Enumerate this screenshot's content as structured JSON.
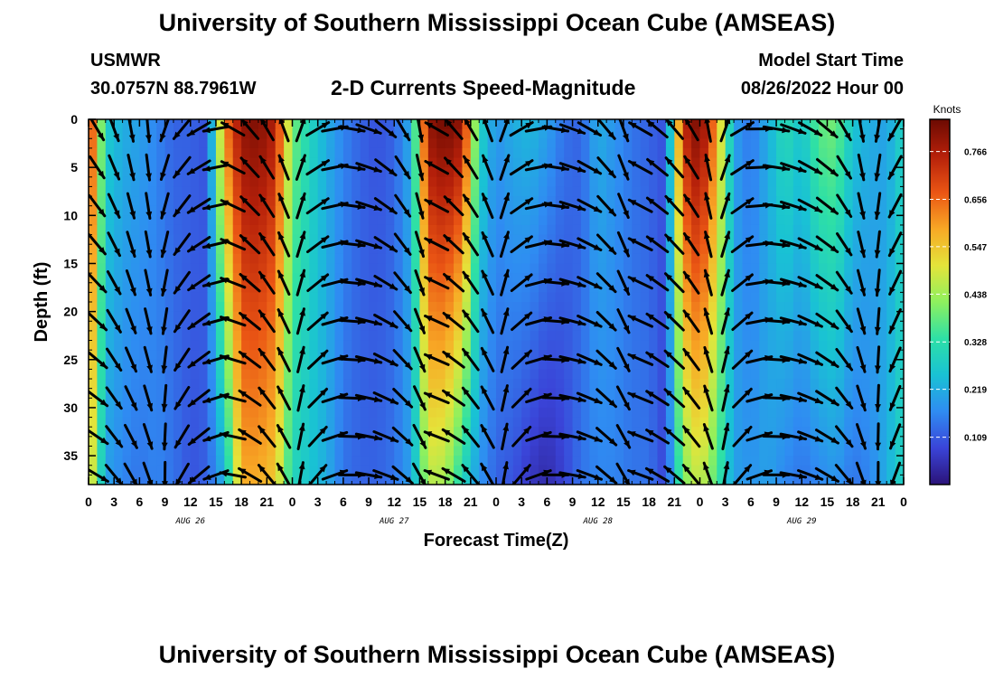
{
  "page": {
    "title": "University of Southern Mississippi Ocean Cube (AMSEAS)",
    "station": "USMWR",
    "coords": "30.0757N  88.7961W",
    "subtitle": "2-D Currents Speed-Magnitude",
    "model_start_label": "Model Start Time",
    "model_start_value": "08/26/2022 Hour 00",
    "footer_title": "University of Southern Mississippi Ocean Cube (AMSEAS)"
  },
  "colors": {
    "colormap": [
      "#2b1378",
      "#3a44d8",
      "#2f8cf2",
      "#19c2d4",
      "#2ee0a6",
      "#8ef05e",
      "#e4e43a",
      "#f8a825",
      "#ea5514",
      "#b5200a",
      "#6c0a02"
    ],
    "arrow": "#000000"
  },
  "chart_data": {
    "type": "heatmap",
    "xlabel": "Forecast Time(Z)",
    "ylabel": "Depth (ft)",
    "x_range_hours": [
      0,
      96
    ],
    "y_range_ft": [
      0,
      38
    ],
    "y_inverted": true,
    "x_ticks": [
      "0",
      "3",
      "6",
      "9",
      "12",
      "15",
      "18",
      "21",
      "0",
      "3",
      "6",
      "9",
      "12",
      "15",
      "18",
      "21",
      "0",
      "3",
      "6",
      "9",
      "12",
      "15",
      "18",
      "21",
      "0",
      "3",
      "6",
      "9",
      "12",
      "15",
      "18",
      "21",
      "0"
    ],
    "y_ticks": [
      0,
      5,
      10,
      15,
      20,
      25,
      30,
      35
    ],
    "date_labels": [
      {
        "text": "AUG 26",
        "hour": 12
      },
      {
        "text": "AUG 27",
        "hour": 36
      },
      {
        "text": "AUG 28",
        "hour": 60
      },
      {
        "text": "AUG 29",
        "hour": 84
      }
    ],
    "colorbar": {
      "unit": "Knots",
      "range": [
        0,
        0.84
      ],
      "ticks": [
        0.109,
        0.219,
        0.328,
        0.438,
        0.547,
        0.656,
        0.766
      ]
    },
    "speed_profile_hours": [
      0,
      2,
      4,
      6,
      8,
      10,
      12,
      14,
      16,
      18,
      20,
      22,
      24,
      26,
      28,
      30,
      32,
      34,
      36,
      38,
      40,
      42,
      44,
      46,
      48,
      50,
      52,
      54,
      56,
      58,
      60,
      62,
      64,
      66,
      68,
      70,
      72,
      74,
      76,
      78,
      80,
      82,
      84,
      86,
      88,
      90,
      92,
      94,
      96
    ],
    "speed_surface_knots": [
      0.78,
      0.28,
      0.22,
      0.2,
      0.16,
      0.12,
      0.12,
      0.1,
      0.62,
      0.8,
      0.82,
      0.76,
      0.4,
      0.3,
      0.22,
      0.16,
      0.12,
      0.1,
      0.12,
      0.22,
      0.8,
      0.84,
      0.8,
      0.3,
      0.18,
      0.22,
      0.24,
      0.2,
      0.14,
      0.12,
      0.22,
      0.18,
      0.14,
      0.12,
      0.1,
      0.74,
      0.84,
      0.6,
      0.2,
      0.14,
      0.22,
      0.32,
      0.26,
      0.38,
      0.4,
      0.26,
      0.22,
      0.2,
      0.3
    ],
    "speed_bottom_knots": [
      0.56,
      0.2,
      0.16,
      0.14,
      0.16,
      0.14,
      0.1,
      0.12,
      0.22,
      0.58,
      0.58,
      0.54,
      0.3,
      0.26,
      0.22,
      0.14,
      0.12,
      0.12,
      0.14,
      0.2,
      0.46,
      0.44,
      0.3,
      0.18,
      0.12,
      0.1,
      0.06,
      0.04,
      0.08,
      0.14,
      0.16,
      0.16,
      0.14,
      0.14,
      0.08,
      0.4,
      0.48,
      0.36,
      0.2,
      0.18,
      0.2,
      0.16,
      0.14,
      0.16,
      0.18,
      0.14,
      0.16,
      0.22,
      0.3
    ],
    "vector_depths_ft": [
      1,
      5,
      9,
      13,
      17,
      21,
      25,
      29,
      33,
      37
    ],
    "vector_hours": [
      1,
      3,
      5,
      7,
      9,
      11,
      13,
      15,
      17,
      19,
      21,
      23,
      25,
      27,
      29,
      31,
      33,
      35,
      37,
      39,
      41,
      43,
      45,
      47,
      49,
      51,
      53,
      55,
      57,
      59,
      61,
      63,
      65,
      67,
      69,
      71,
      73,
      75,
      77,
      79,
      81,
      83,
      85,
      87,
      89,
      91,
      93,
      95
    ],
    "vector_direction_deg_surface": [
      150,
      160,
      170,
      175,
      200,
      220,
      240,
      260,
      300,
      320,
      330,
      340,
      20,
      60,
      80,
      100,
      110,
      130,
      150,
      170,
      300,
      320,
      330,
      340,
      20,
      60,
      80,
      100,
      110,
      120,
      140,
      160,
      300,
      310,
      320,
      330,
      350,
      20,
      60,
      90,
      100,
      110,
      120,
      130,
      150,
      170,
      190,
      210
    ],
    "vector_direction_deg_bottom": [
      120,
      140,
      150,
      160,
      180,
      210,
      230,
      250,
      280,
      300,
      320,
      330,
      10,
      40,
      70,
      90,
      100,
      110,
      130,
      150,
      290,
      300,
      320,
      330,
      10,
      40,
      70,
      90,
      100,
      110,
      130,
      150,
      290,
      300,
      310,
      320,
      340,
      10,
      40,
      70,
      90,
      100,
      110,
      120,
      140,
      160,
      180,
      200
    ]
  }
}
